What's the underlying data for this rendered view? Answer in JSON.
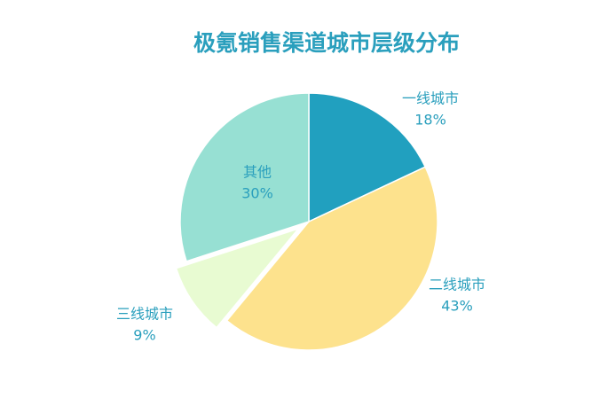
{
  "chart_data": {
    "type": "pie",
    "title": "极氪销售渠道城市层级分布",
    "categories": [
      "一线城市",
      "二线城市",
      "三线城市",
      "其他"
    ],
    "values": [
      18,
      43,
      9,
      30
    ],
    "value_labels": [
      "18%",
      "43%",
      "9%",
      "30%"
    ],
    "colors": [
      "#21a0bf",
      "#fde28d",
      "#e8fbd2",
      "#97e0d3"
    ],
    "exploded": [
      false,
      false,
      true,
      false
    ]
  }
}
